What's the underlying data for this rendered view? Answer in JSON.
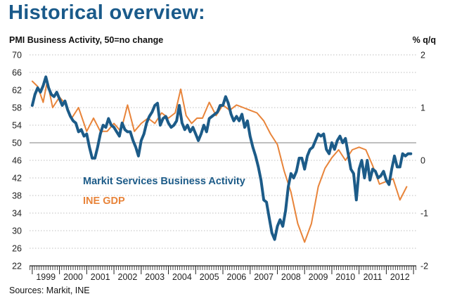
{
  "header": {
    "title": "Historical overview:",
    "left_axis_label": "PMI Business Activity, 50=no change",
    "right_axis_label": "% q/q",
    "source": "Sources: Markit, INE"
  },
  "colors": {
    "pmi": "#1c5b88",
    "gdp": "#e8843a",
    "grid": "#bfbfbf",
    "axis": "#222222"
  },
  "chart_data": {
    "type": "line",
    "title": "Historical overview:",
    "ylabel": "PMI Business Activity, 50=no change",
    "y2label": "% q/q",
    "ylim": [
      22,
      70
    ],
    "yticks": [
      22,
      26,
      30,
      34,
      38,
      42,
      46,
      50,
      54,
      58,
      62,
      66,
      70
    ],
    "y2lim": [
      -2,
      2
    ],
    "y2ticks": [
      -2,
      -1,
      0,
      1,
      2
    ],
    "xlim": [
      1998.9,
      2013.1
    ],
    "xtick_labels": [
      "1999",
      "2000",
      "2001",
      "2002",
      "2003",
      "2004",
      "2005",
      "2006",
      "2007",
      "2008",
      "2009",
      "2010",
      "2011",
      "2012"
    ],
    "reference_line": 50,
    "annotations": [
      "Markit Services Business Activity",
      "INE GDP"
    ],
    "series": [
      {
        "name": "Markit Services Business Activity",
        "axis": "left",
        "x": [
          1999.0,
          1999.1,
          1999.2,
          1999.3,
          1999.4,
          1999.5,
          1999.6,
          1999.7,
          1999.8,
          1999.9,
          2000.0,
          2000.1,
          2000.2,
          2000.3,
          2000.4,
          2000.5,
          2000.6,
          2000.7,
          2000.8,
          2000.9,
          2001.0,
          2001.1,
          2001.2,
          2001.3,
          2001.4,
          2001.5,
          2001.6,
          2001.7,
          2001.8,
          2001.9,
          2002.0,
          2002.1,
          2002.2,
          2002.3,
          2002.4,
          2002.5,
          2002.6,
          2002.7,
          2002.8,
          2002.9,
          2003.0,
          2003.1,
          2003.2,
          2003.3,
          2003.4,
          2003.5,
          2003.6,
          2003.7,
          2003.8,
          2003.9,
          2004.0,
          2004.1,
          2004.2,
          2004.3,
          2004.4,
          2004.5,
          2004.6,
          2004.7,
          2004.8,
          2004.9,
          2005.0,
          2005.1,
          2005.2,
          2005.3,
          2005.4,
          2005.5,
          2005.6,
          2005.7,
          2005.8,
          2005.9,
          2006.0,
          2006.1,
          2006.2,
          2006.3,
          2006.4,
          2006.5,
          2006.6,
          2006.7,
          2006.8,
          2006.9,
          2007.0,
          2007.1,
          2007.2,
          2007.3,
          2007.4,
          2007.5,
          2007.6,
          2007.7,
          2007.8,
          2007.9,
          2008.0,
          2008.1,
          2008.2,
          2008.3,
          2008.4,
          2008.5,
          2008.6,
          2008.7,
          2008.8,
          2008.9,
          2009.0,
          2009.1,
          2009.2,
          2009.3,
          2009.4,
          2009.5,
          2009.6,
          2009.7,
          2009.8,
          2009.9,
          2010.0,
          2010.1,
          2010.2,
          2010.3,
          2010.4,
          2010.5,
          2010.6,
          2010.7,
          2010.8,
          2010.9,
          2011.0,
          2011.1,
          2011.2,
          2011.3,
          2011.4,
          2011.5,
          2011.6,
          2011.7,
          2011.8,
          2011.9,
          2012.0,
          2012.1,
          2012.2,
          2012.3,
          2012.4,
          2012.5,
          2012.6,
          2012.7,
          2012.8,
          2012.9
        ],
        "values": [
          58.5,
          61.0,
          62.5,
          61.5,
          63.0,
          65.0,
          62.5,
          61.0,
          60.5,
          61.5,
          60.0,
          58.5,
          59.5,
          57.5,
          56.0,
          55.0,
          54.5,
          52.5,
          53.0,
          51.5,
          52.0,
          49.0,
          46.5,
          46.5,
          49.0,
          52.0,
          54.0,
          53.5,
          55.5,
          54.0,
          53.5,
          52.5,
          51.5,
          54.5,
          53.0,
          52.5,
          52.5,
          50.5,
          49.0,
          47.0,
          50.5,
          52.0,
          54.5,
          56.0,
          57.0,
          58.5,
          59.0,
          54.0,
          55.5,
          56.0,
          54.5,
          53.5,
          54.0,
          55.0,
          58.5,
          54.5,
          53.0,
          54.0,
          52.5,
          53.5,
          52.0,
          50.5,
          52.0,
          54.0,
          52.5,
          55.5,
          56.0,
          56.5,
          57.0,
          58.5,
          58.5,
          60.5,
          59.0,
          56.5,
          55.0,
          56.0,
          55.0,
          56.5,
          53.5,
          55.0,
          51.5,
          49.0,
          47.0,
          44.5,
          41.5,
          37.0,
          36.5,
          33.0,
          29.5,
          28.0,
          31.0,
          32.5,
          31.0,
          34.5,
          40.0,
          43.0,
          42.0,
          43.5,
          46.5,
          46.5,
          44.0,
          47.0,
          48.5,
          49.0,
          50.5,
          52.0,
          51.5,
          52.0,
          48.5,
          47.5,
          50.0,
          48.5,
          50.5,
          51.5,
          50.0,
          51.0,
          47.5,
          44.0,
          43.0,
          37.0,
          44.0,
          46.0,
          42.0,
          46.0,
          41.5,
          44.0,
          43.5,
          42.0,
          42.5,
          43.5,
          41.5,
          40.5,
          44.0,
          47.0,
          44.5,
          44.5,
          47.5,
          47.0,
          47.5,
          47.5
        ]
      },
      {
        "name": "INE GDP",
        "axis": "right",
        "x": [
          1999.0,
          1999.2,
          1999.4,
          1999.55,
          1999.75,
          2000.0,
          2000.25,
          2000.45,
          2000.7,
          2001.0,
          2001.25,
          2001.5,
          2001.75,
          2002.0,
          2002.25,
          2002.5,
          2002.75,
          2003.0,
          2003.25,
          2003.5,
          2003.75,
          2004.0,
          2004.25,
          2004.45,
          2004.65,
          2004.85,
          2005.05,
          2005.25,
          2005.5,
          2005.75,
          2006.0,
          2006.25,
          2006.5,
          2006.75,
          2007.0,
          2007.25,
          2007.5,
          2007.75,
          2008.0,
          2008.25,
          2008.5,
          2008.75,
          2009.0,
          2009.25,
          2009.5,
          2009.75,
          2010.0,
          2010.25,
          2010.5,
          2010.75,
          2011.0,
          2011.25,
          2011.5,
          2011.75,
          2012.0,
          2012.25,
          2012.5,
          2012.75
        ],
        "values": [
          1.5,
          1.4,
          1.1,
          1.5,
          1.0,
          1.2,
          1.05,
          0.8,
          1.0,
          0.55,
          0.8,
          0.55,
          0.55,
          0.7,
          0.55,
          1.05,
          0.55,
          0.7,
          0.8,
          0.7,
          0.9,
          0.8,
          0.9,
          1.35,
          0.85,
          0.7,
          0.8,
          0.8,
          1.1,
          0.85,
          1.05,
          0.95,
          1.05,
          1.0,
          0.95,
          0.9,
          0.75,
          0.5,
          0.3,
          -0.2,
          -0.6,
          -1.2,
          -1.55,
          -1.2,
          -0.5,
          -0.15,
          0.05,
          0.2,
          0.0,
          0.2,
          0.25,
          0.2,
          -0.1,
          -0.45,
          -0.4,
          -0.35,
          -0.75,
          -0.5
        ]
      }
    ]
  }
}
